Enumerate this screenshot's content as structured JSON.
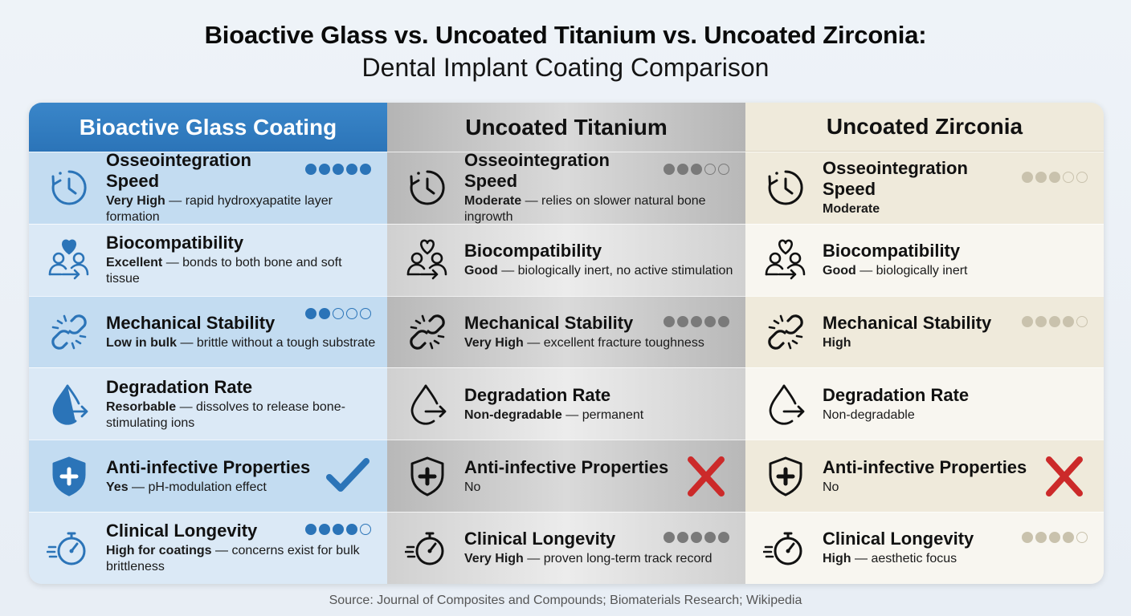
{
  "title": "Bioactive Glass vs. Uncoated Titanium vs. Uncoated Zirconia:",
  "subtitle": "Dental Implant Coating Comparison",
  "source": "Source: Journal of Composites and Compounds; Biomaterials Research; Wikipedia",
  "colors": {
    "glass_accent": "#2b74b8",
    "titanium_dots": "#7a7a7a",
    "zirconia_dots": "#c9c2ad",
    "check": "#2b74b8",
    "cross": "#cc2a2a"
  },
  "columns": [
    {
      "key": "glass",
      "header": "Bioactive Glass Coating",
      "icon_color": "#2b74b8",
      "dot_color": "#2b74b8",
      "rows": [
        {
          "icon": "stopwatch-clock-icon",
          "heading": "Osseointegration Speed",
          "bold": "Very High",
          "rest": " — rapid hydroxyapatite layer formation",
          "rating": 5,
          "mark": ""
        },
        {
          "icon": "people-heart-icon",
          "heading": "Biocompatibility",
          "bold": "Excellent",
          "rest": " — bonds to both bone and soft tissue",
          "rating": null,
          "mark": ""
        },
        {
          "icon": "broken-link-icon",
          "heading": "Mechanical Stability",
          "bold": "Low in bulk",
          "rest": " — brittle without a tough substrate",
          "rating": 2,
          "mark": ""
        },
        {
          "icon": "drop-arrow-icon",
          "heading": "Degradation Rate",
          "bold": "Resorbable",
          "rest": " — dissolves to release bone-stimulating ions",
          "rating": null,
          "mark": ""
        },
        {
          "icon": "shield-cross-icon",
          "heading": "Anti-infective Properties",
          "bold": "Yes",
          "rest": " — pH-modulation effect",
          "rating": null,
          "mark": "check"
        },
        {
          "icon": "speed-gauge-icon",
          "heading": "Clinical Longevity",
          "bold": "High for coatings",
          "rest": " — concerns exist for bulk brittleness",
          "rating": 4,
          "mark": ""
        }
      ]
    },
    {
      "key": "ti",
      "header": "Uncoated Titanium",
      "icon_color": "#111111",
      "dot_color": "#7a7a7a",
      "rows": [
        {
          "icon": "stopwatch-clock-icon",
          "heading": "Osseointegration Speed",
          "bold": "Moderate",
          "rest": " — relies on slower natural bone ingrowth",
          "rating": 3,
          "mark": ""
        },
        {
          "icon": "people-heart-icon",
          "heading": "Biocompatibility",
          "bold": "Good",
          "rest": " — biologically inert, no active stimulation",
          "rating": null,
          "mark": ""
        },
        {
          "icon": "broken-link-icon",
          "heading": "Mechanical Stability",
          "bold": "Very High",
          "rest": " — excellent fracture toughness",
          "rating": 5,
          "mark": ""
        },
        {
          "icon": "drop-arrow-icon",
          "heading": "Degradation Rate",
          "bold": "Non-degradable",
          "rest": " — permanent",
          "rating": null,
          "mark": ""
        },
        {
          "icon": "shield-cross-icon",
          "heading": "Anti-infective Properties",
          "bold": "",
          "rest": "No",
          "rating": null,
          "mark": "cross"
        },
        {
          "icon": "speed-gauge-icon",
          "heading": "Clinical Longevity",
          "bold": "Very High",
          "rest": " — proven long-term track record",
          "rating": 5,
          "mark": ""
        }
      ]
    },
    {
      "key": "zr",
      "header": "Uncoated Zirconia",
      "icon_color": "#111111",
      "dot_color": "#c9c2ad",
      "rows": [
        {
          "icon": "stopwatch-clock-icon",
          "heading": "Osseointegration Speed",
          "bold": "Moderate",
          "rest": "",
          "rating": 3,
          "mark": ""
        },
        {
          "icon": "people-heart-icon",
          "heading": "Biocompatibility",
          "bold": "Good",
          "rest": " — biologically inert",
          "rating": null,
          "mark": ""
        },
        {
          "icon": "broken-link-icon",
          "heading": "Mechanical Stability",
          "bold": "High",
          "rest": "",
          "rating": 4,
          "mark": ""
        },
        {
          "icon": "drop-arrow-icon",
          "heading": "Degradation Rate",
          "bold": "",
          "rest": "Non-degradable",
          "rating": null,
          "mark": ""
        },
        {
          "icon": "shield-cross-icon",
          "heading": "Anti-infective Properties",
          "bold": "",
          "rest": "No",
          "rating": null,
          "mark": "cross"
        },
        {
          "icon": "speed-gauge-icon",
          "heading": "Clinical Longevity",
          "bold": "High",
          "rest": " — aesthetic focus",
          "rating": 4,
          "mark": ""
        }
      ]
    }
  ]
}
